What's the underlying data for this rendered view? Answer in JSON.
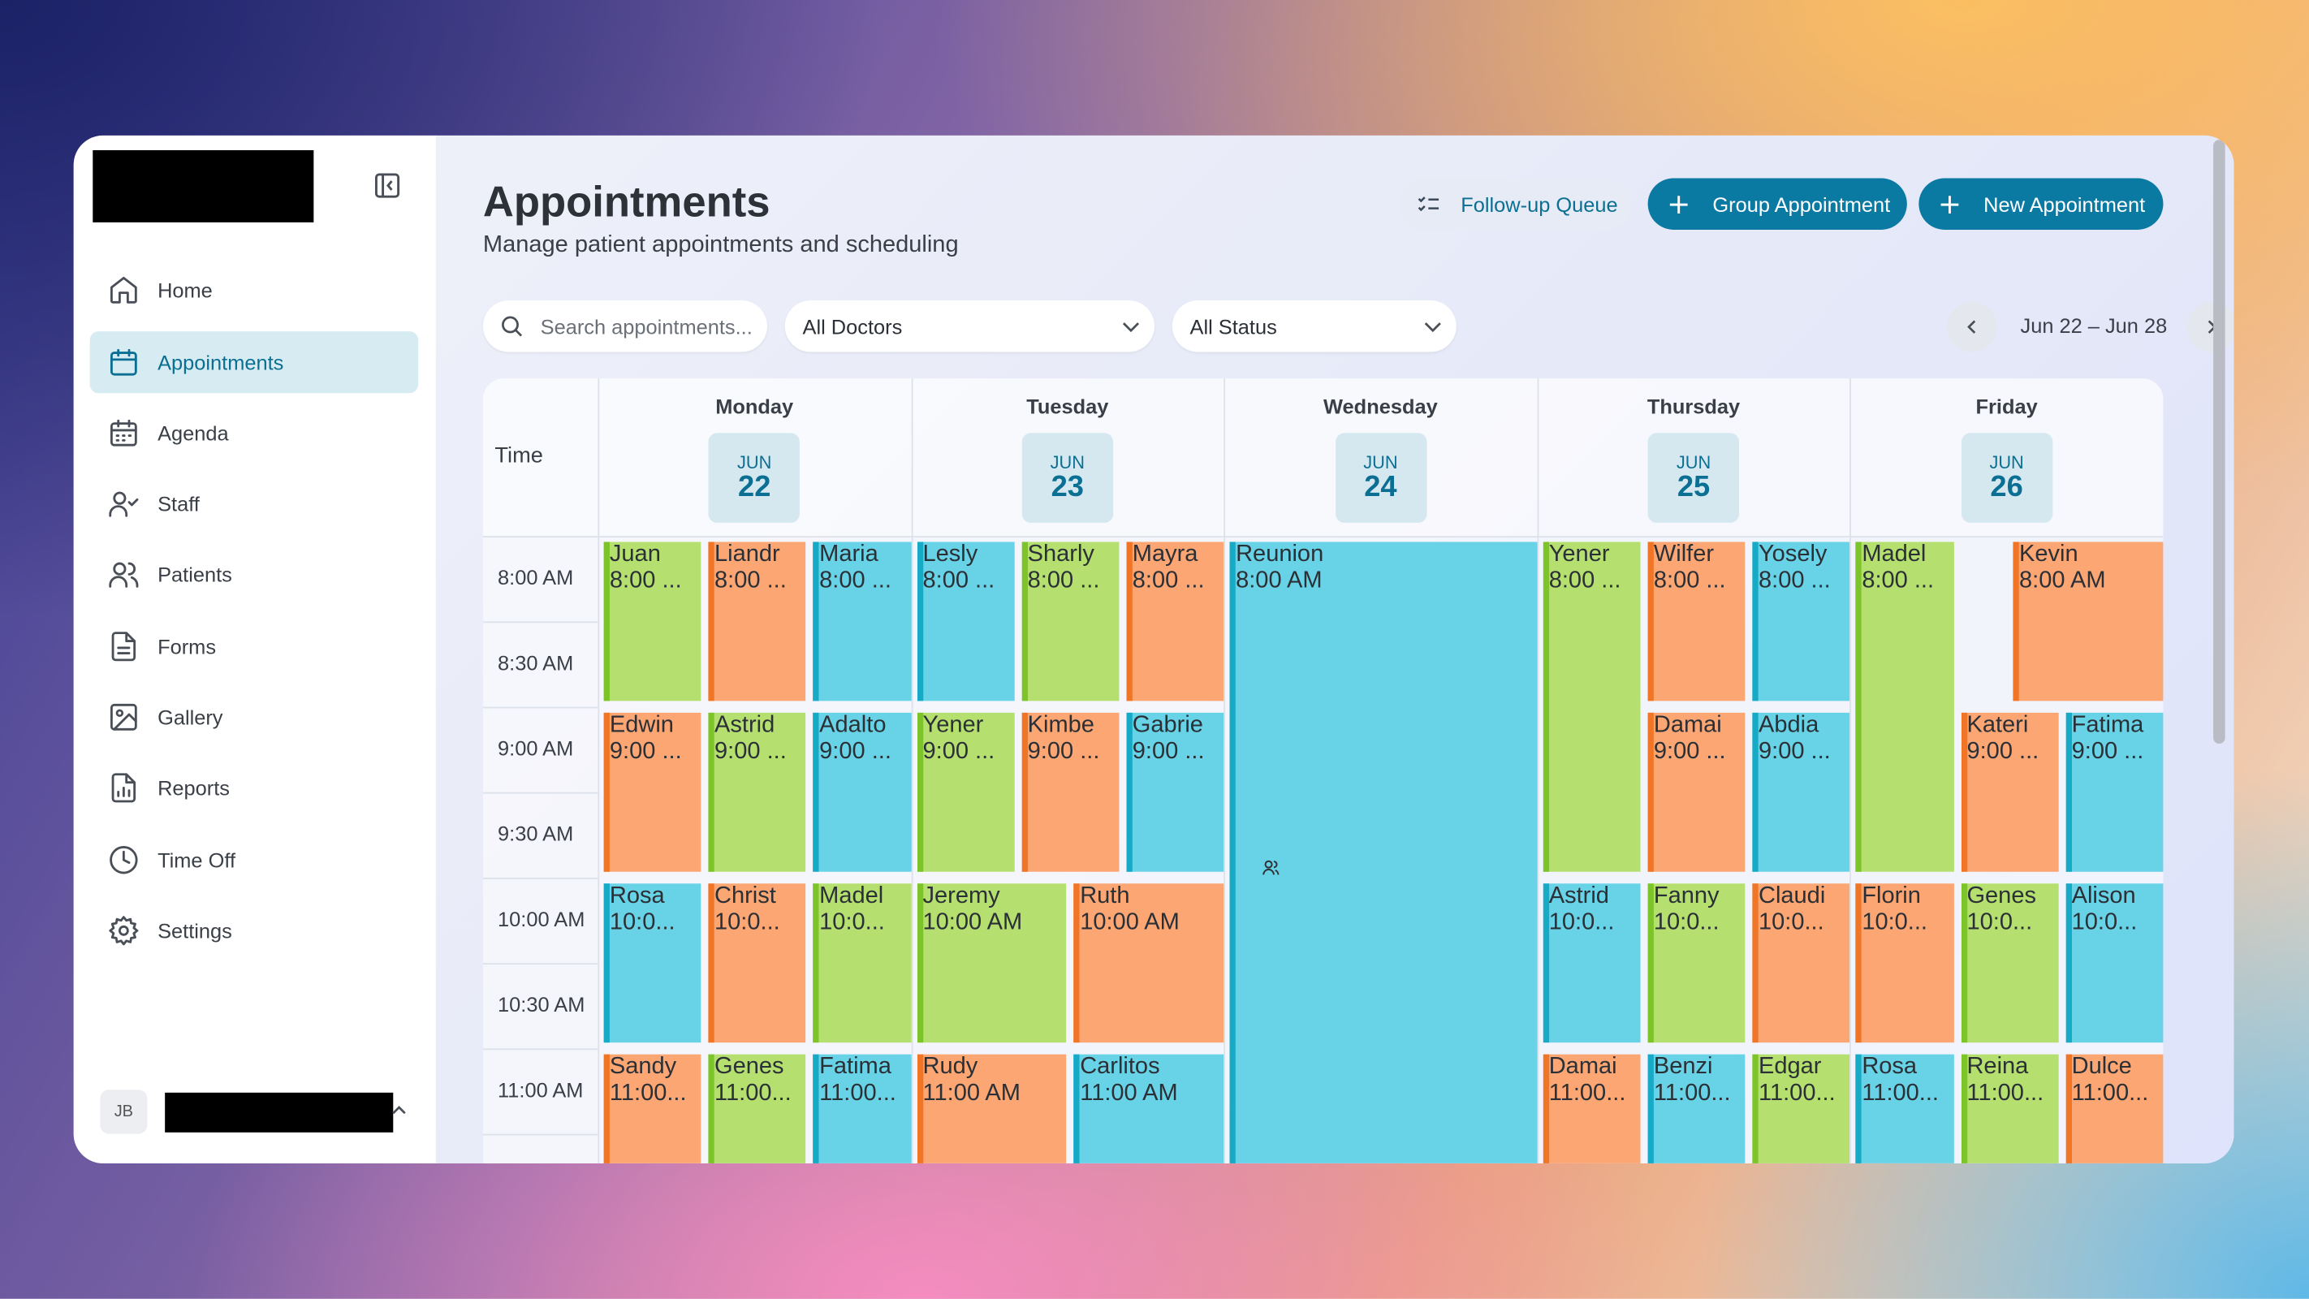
{
  "sidebar": {
    "nav": [
      "Home",
      "Appointments",
      "Agenda",
      "Staff",
      "Patients",
      "Forms",
      "Gallery",
      "Reports",
      "Time Off",
      "Settings"
    ],
    "user_initials": "JB"
  },
  "header": {
    "title": "Appointments",
    "subtitle": "Manage patient appointments and scheduling",
    "buttons": [
      "Follow-up Queue",
      "Group Appointment",
      "New Appointment"
    ]
  },
  "filters": {
    "search_placeholder": "Search appointments...",
    "doctor": "All Doctors",
    "status": "All Status",
    "date_range": "Jun 22 – Jun 28"
  },
  "calendar": {
    "time_header": "Time",
    "days": [
      {
        "name": "Monday",
        "month": "JUN",
        "date": 22
      },
      {
        "name": "Tuesday",
        "month": "JUN",
        "date": 23
      },
      {
        "name": "Wednesday",
        "month": "JUN",
        "date": 24
      },
      {
        "name": "Thursday",
        "month": "JUN",
        "date": 25
      },
      {
        "name": "Friday",
        "month": "JUN",
        "date": 26
      }
    ],
    "times": [
      "8:00 AM",
      "8:30 AM",
      "9:00 AM",
      "9:30 AM",
      "10:00 AM",
      "10:30 AM",
      "11:00 AM"
    ],
    "appointments": [
      {
        "name": "Juan",
        "time": "8:00 ...",
        "color": "green"
      },
      {
        "name": "Liandr",
        "time": "8:00 ...",
        "color": "orange"
      },
      {
        "name": "Maria",
        "time": "8:00 ...",
        "color": "blue"
      },
      {
        "name": "Edwin",
        "time": "9:00 ...",
        "color": "orange"
      },
      {
        "name": "Astrid",
        "time": "9:00 ...",
        "color": "green"
      },
      {
        "name": "Adalto",
        "time": "9:00 ...",
        "color": "blue"
      },
      {
        "name": "Rosa",
        "time": "10:0...",
        "color": "blue"
      },
      {
        "name": "Christ",
        "time": "10:0...",
        "color": "orange"
      },
      {
        "name": "Madel",
        "time": "10:0...",
        "color": "green"
      },
      {
        "name": "Sandy",
        "time": "11:00...",
        "color": "orange"
      },
      {
        "name": "Genes",
        "time": "11:00...",
        "color": "green"
      },
      {
        "name": "Fatima",
        "time": "11:00...",
        "color": "blue"
      },
      {
        "name": "Lesly",
        "time": "8:00 ...",
        "color": "blue"
      },
      {
        "name": "Sharly",
        "time": "8:00 ...",
        "color": "green"
      },
      {
        "name": "Mayra",
        "time": "8:00 ...",
        "color": "orange"
      },
      {
        "name": "Yener",
        "time": "9:00 ...",
        "color": "green"
      },
      {
        "name": "Kimbe",
        "time": "9:00 ...",
        "color": "orange"
      },
      {
        "name": "Gabrie",
        "time": "9:00 ...",
        "color": "blue"
      },
      {
        "name": "Jeremy",
        "time": "10:00 AM",
        "color": "green"
      },
      {
        "name": "Ruth",
        "time": "10:00 AM",
        "color": "orange"
      },
      {
        "name": "Rudy",
        "time": "11:00 AM",
        "color": "orange"
      },
      {
        "name": "Carlitos",
        "time": "11:00 AM",
        "color": "blue"
      },
      {
        "name": "Reunion",
        "time": "8:00 AM",
        "color": "blue"
      },
      {
        "name": "Yener",
        "time": "8:00 ...",
        "color": "green"
      },
      {
        "name": "Wilfer",
        "time": "8:00 ...",
        "color": "orange"
      },
      {
        "name": "Yosely",
        "time": "8:00 ...",
        "color": "blue"
      },
      {
        "name": "Damai",
        "time": "9:00 ...",
        "color": "orange"
      },
      {
        "name": "Abdia",
        "time": "9:00 ...",
        "color": "blue"
      },
      {
        "name": "Astrid",
        "time": "10:0...",
        "color": "blue"
      },
      {
        "name": "Fanny",
        "time": "10:0...",
        "color": "green"
      },
      {
        "name": "Claudi",
        "time": "10:0...",
        "color": "orange"
      },
      {
        "name": "Damai",
        "time": "11:00...",
        "color": "orange"
      },
      {
        "name": "Benzi",
        "time": "11:00...",
        "color": "blue"
      },
      {
        "name": "Edgar",
        "time": "11:00...",
        "color": "green"
      },
      {
        "name": "Madel",
        "time": "8:00 ...",
        "color": "green"
      },
      {
        "name": "Kevin",
        "time": "8:00 AM",
        "color": "orange"
      },
      {
        "name": "Kateri",
        "time": "9:00 ...",
        "color": "orange"
      },
      {
        "name": "Fatima",
        "time": "9:00 ...",
        "color": "blue"
      },
      {
        "name": "Florin",
        "time": "10:0...",
        "color": "orange"
      },
      {
        "name": "Genes",
        "time": "10:0...",
        "color": "green"
      },
      {
        "name": "Alison",
        "time": "10:0...",
        "color": "blue"
      },
      {
        "name": "Rosa",
        "time": "11:00...",
        "color": "blue"
      },
      {
        "name": "Reina",
        "time": "11:00...",
        "color": "green"
      },
      {
        "name": "Dulce",
        "time": "11:00...",
        "color": "orange"
      }
    ]
  }
}
